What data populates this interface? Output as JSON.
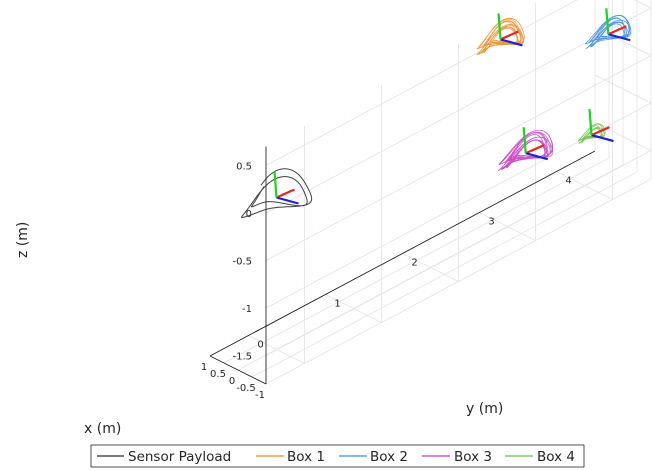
{
  "chart_data": {
    "type": "line3d",
    "title": "",
    "xlabel": "x (m)",
    "ylabel": "y (m)",
    "zlabel": "z (m)",
    "xlim": [
      -1,
      1
    ],
    "ylim": [
      -0.5,
      4.5
    ],
    "zlim": [
      -1.8,
      0.7
    ],
    "x_ticks": [
      "-1",
      "-0.5",
      "0",
      "0.5",
      "1"
    ],
    "y_ticks": [
      "0",
      "1",
      "2",
      "3",
      "4"
    ],
    "z_ticks": [
      "0.5",
      "0",
      "-0.5",
      "-1",
      "-1.5"
    ],
    "grid": true,
    "legend_position": "bottom",
    "series": [
      {
        "name": "Sensor Payload",
        "color": "#2b2b2b",
        "center": [
          0,
          0,
          -0.2
        ],
        "spread": [
          0.55,
          0.35,
          0.08
        ],
        "loops": 2,
        "frame_axes": true
      },
      {
        "name": "Box 1",
        "color": "#f08c28",
        "center": [
          -0.3,
          2.8,
          0.3
        ],
        "spread": [
          0.3,
          0.25,
          0.06
        ],
        "loops": 12,
        "frame_axes": true
      },
      {
        "name": "Box 2",
        "color": "#3d8fd9",
        "center": [
          -0.3,
          4.2,
          -0.25
        ],
        "spread": [
          0.25,
          0.25,
          0.05
        ],
        "loops": 10,
        "frame_axes": true
      },
      {
        "name": "Box 3",
        "color": "#c73bc3",
        "center": [
          -0.1,
          3.2,
          -1.1
        ],
        "spread": [
          0.3,
          0.3,
          0.06
        ],
        "loops": 12,
        "frame_axes": true
      },
      {
        "name": "Box 4",
        "color": "#6cc14a",
        "center": [
          0.3,
          4.2,
          -1.4
        ],
        "spread": [
          0.15,
          0.15,
          0.03
        ],
        "loops": 6,
        "frame_axes": true
      }
    ]
  }
}
